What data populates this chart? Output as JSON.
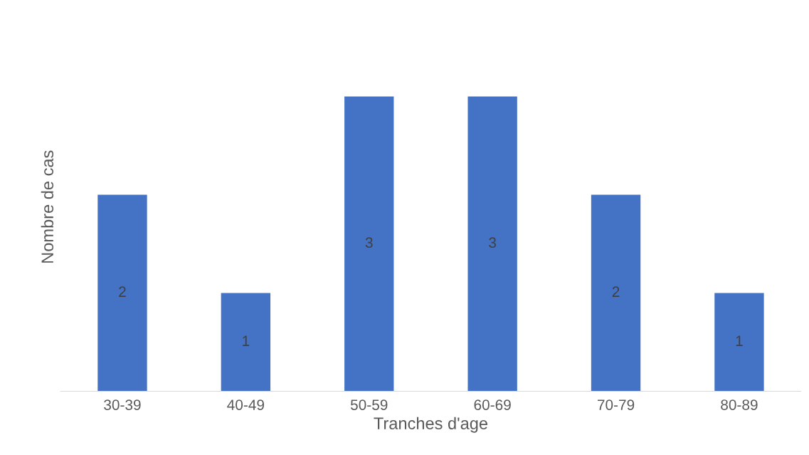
{
  "chart_data": {
    "type": "bar",
    "xlabel": "Tranches d'age",
    "ylabel": "Nombre de cas",
    "categories": [
      "30-39",
      "40-49",
      "50-59",
      "60-69",
      "70-79",
      "80-89"
    ],
    "values": [
      2,
      1,
      3,
      3,
      2,
      1
    ],
    "color": "#4472c4",
    "data_labels": true,
    "grid": false,
    "legend": false,
    "tick_labels": "x"
  }
}
